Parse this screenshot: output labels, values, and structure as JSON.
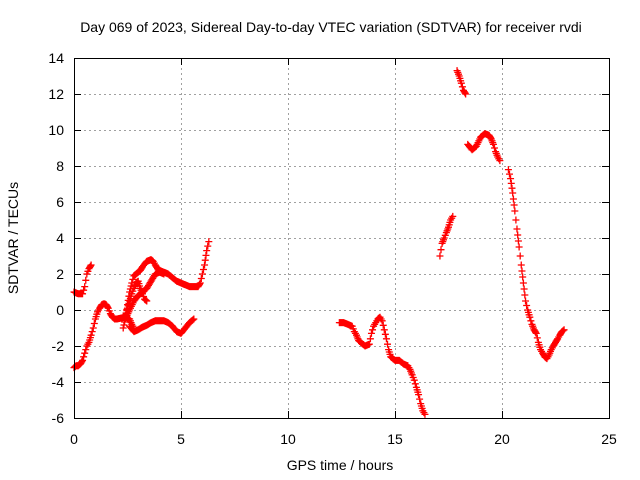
{
  "chart_data": {
    "type": "scatter",
    "title": "Day 069 of 2023, Sidereal Day-to-day VTEC variation (SDTVAR) for receiver rvdi",
    "xlabel": "GPS time / hours",
    "ylabel": "SDTVAR / TECUs",
    "xlim": [
      0,
      25
    ],
    "ylim": [
      -6,
      14
    ],
    "xticks": [
      0,
      5,
      10,
      15,
      20,
      25
    ],
    "yticks": [
      -6,
      -4,
      -2,
      0,
      2,
      4,
      6,
      8,
      10,
      12,
      14
    ],
    "grid": true,
    "marker": "plus",
    "series": [
      {
        "name": "rvdi",
        "color": "#ff0000",
        "segments": [
          {
            "x": [
              0.0,
              0.2,
              0.4,
              0.5,
              0.6,
              0.7,
              0.8
            ],
            "y": [
              1.0,
              0.9,
              0.9,
              1.3,
              2.0,
              2.3,
              2.5
            ]
          },
          {
            "x": [
              0.0,
              0.1,
              0.2,
              0.3,
              0.4,
              0.5,
              0.6,
              0.7,
              0.8,
              0.9,
              1.0,
              1.1,
              1.2,
              1.3,
              1.4,
              1.5,
              1.6,
              1.7,
              1.8,
              1.9,
              2.0,
              2.2,
              2.4,
              2.6,
              2.7,
              2.8
            ],
            "y": [
              -3.2,
              -3.1,
              -3.1,
              -3.0,
              -2.8,
              -2.4,
              -2.0,
              -1.8,
              -1.4,
              -1.0,
              -0.5,
              -0.1,
              0.1,
              0.3,
              0.35,
              0.3,
              0.1,
              -0.2,
              -0.4,
              -0.5,
              -0.5,
              -0.45,
              -0.4,
              -0.5,
              -0.8,
              -1.0
            ]
          },
          {
            "x": [
              2.3,
              2.4,
              2.5,
              2.6,
              2.7,
              2.8,
              2.9,
              3.0,
              3.1,
              3.2,
              3.3,
              3.4,
              3.5,
              3.6,
              3.7,
              3.8,
              3.9,
              4.0,
              4.2,
              4.4,
              4.6,
              4.8,
              5.0,
              5.2,
              5.4,
              5.6,
              5.8,
              5.9,
              6.0,
              6.1,
              6.2,
              6.3
            ],
            "y": [
              -1.0,
              -0.5,
              0.3,
              1.0,
              1.5,
              1.9,
              2.0,
              2.1,
              2.2,
              2.4,
              2.55,
              2.7,
              2.75,
              2.8,
              2.7,
              2.5,
              2.3,
              2.2,
              2.1,
              2.0,
              1.8,
              1.6,
              1.5,
              1.4,
              1.3,
              1.3,
              1.3,
              1.5,
              2.0,
              2.5,
              3.3,
              3.8
            ]
          },
          {
            "x": [
              2.4,
              2.6,
              2.8,
              3.0,
              3.2,
              3.4,
              3.6,
              3.8,
              4.0,
              4.2
            ],
            "y": [
              -0.5,
              0.0,
              0.5,
              0.8,
              1.0,
              1.2,
              1.6,
              2.0,
              2.1,
              2.0
            ]
          },
          {
            "x": [
              2.4,
              2.5,
              2.6,
              2.7,
              2.8,
              2.9,
              3.0,
              3.1,
              3.2,
              3.3,
              3.4
            ],
            "y": [
              -0.3,
              0.1,
              0.5,
              0.9,
              1.2,
              1.5,
              1.6,
              1.2,
              0.9,
              0.6,
              0.5
            ]
          },
          {
            "x": [
              2.6,
              2.8,
              3.0,
              3.2,
              3.4,
              3.6,
              3.8,
              4.0,
              4.2,
              4.4,
              4.6,
              4.8,
              5.0,
              5.2,
              5.4,
              5.6
            ],
            "y": [
              -0.9,
              -1.2,
              -1.1,
              -0.95,
              -0.85,
              -0.7,
              -0.6,
              -0.6,
              -0.6,
              -0.7,
              -0.9,
              -1.2,
              -1.3,
              -1.0,
              -0.7,
              -0.5
            ]
          },
          {
            "x": [
              12.4,
              12.6,
              12.8,
              13.0,
              13.1,
              13.2,
              13.3,
              13.4,
              13.6,
              13.8,
              13.9,
              14.0,
              14.1,
              14.2,
              14.3,
              14.4,
              14.5,
              14.6,
              14.7,
              14.8,
              15.0,
              15.2,
              15.4,
              15.6,
              15.7,
              15.8,
              15.9,
              16.0,
              16.1,
              16.2,
              16.3,
              16.4
            ],
            "y": [
              -0.7,
              -0.7,
              -0.8,
              -0.9,
              -1.2,
              -1.4,
              -1.7,
              -1.8,
              -2.0,
              -1.9,
              -1.3,
              -0.9,
              -0.7,
              -0.5,
              -0.4,
              -0.6,
              -1.1,
              -1.6,
              -2.2,
              -2.6,
              -2.8,
              -2.8,
              -3.0,
              -3.1,
              -3.3,
              -3.6,
              -3.9,
              -4.3,
              -4.7,
              -5.2,
              -5.6,
              -5.8
            ]
          },
          {
            "x": [
              17.1,
              17.2,
              17.3,
              17.4,
              17.5,
              17.6,
              17.7
            ],
            "y": [
              3.0,
              3.7,
              4.0,
              4.3,
              4.6,
              5.0,
              5.2
            ]
          },
          {
            "x": [
              17.9,
              18.0,
              18.1,
              18.2,
              18.3
            ],
            "y": [
              13.3,
              13.0,
              12.6,
              12.2,
              12.0
            ]
          },
          {
            "x": [
              18.4,
              18.6,
              18.8,
              19.0,
              19.2,
              19.4,
              19.5,
              19.6,
              19.7,
              19.8,
              19.9
            ],
            "y": [
              9.2,
              8.9,
              9.1,
              9.6,
              9.8,
              9.7,
              9.5,
              9.2,
              8.8,
              8.5,
              8.3
            ]
          },
          {
            "x": [
              20.3,
              20.4,
              20.5,
              20.6,
              20.7,
              20.8,
              20.9,
              21.0,
              21.1,
              21.2,
              21.3,
              21.4,
              21.5,
              21.6,
              21.7,
              21.8,
              21.9,
              22.0,
              22.1,
              22.2,
              22.3,
              22.4,
              22.5,
              22.6,
              22.7,
              22.8,
              22.9
            ],
            "y": [
              7.8,
              7.3,
              6.5,
              5.5,
              4.5,
              3.5,
              2.5,
              1.5,
              0.5,
              0.0,
              -0.4,
              -0.8,
              -1.1,
              -1.3,
              -1.8,
              -2.2,
              -2.4,
              -2.6,
              -2.7,
              -2.5,
              -2.2,
              -2.0,
              -1.8,
              -1.6,
              -1.4,
              -1.2,
              -1.1
            ]
          }
        ]
      }
    ]
  }
}
